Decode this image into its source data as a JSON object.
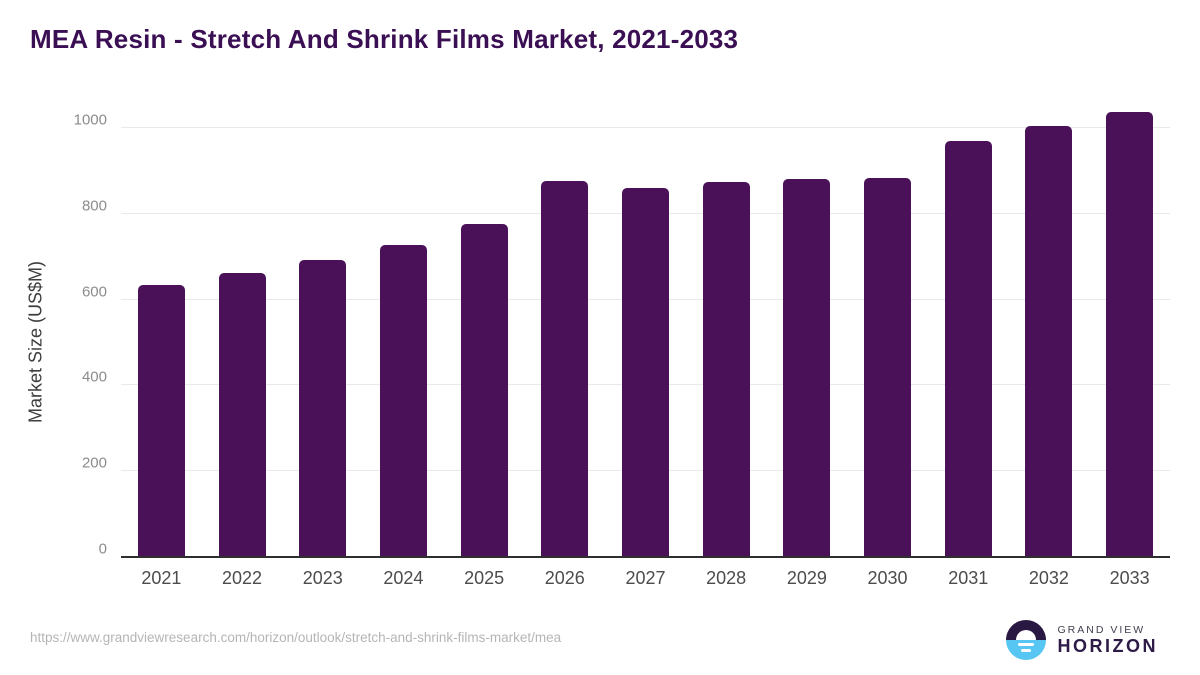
{
  "title": "MEA Resin - Stretch And Shrink Films Market, 2021-2033",
  "chart_data": {
    "type": "bar",
    "title": "MEA Resin - Stretch And Shrink Films Market, 2021-2033",
    "categories": [
      "2021",
      "2022",
      "2023",
      "2024",
      "2025",
      "2026",
      "2027",
      "2028",
      "2029",
      "2030",
      "2031",
      "2032",
      "2033"
    ],
    "values": [
      635,
      663,
      693,
      728,
      777,
      876,
      861,
      875,
      881,
      884,
      970,
      1005,
      1037
    ],
    "xlabel": "",
    "ylabel": "Market Size (US$M)",
    "ylim": [
      0,
      1000
    ],
    "yticks": [
      0,
      200,
      400,
      600,
      800,
      1000
    ],
    "grid": true,
    "legend": false,
    "bar_color": "#4a1158"
  },
  "colors": {
    "title": "#3a0f53",
    "bar": "#4a1158",
    "gridline": "#e9e9ec",
    "axis_line": "#2e2e2e",
    "ytick_label": "#8c8c8c",
    "xtick_label": "#4c4c4c",
    "url_text": "#b5b5b5",
    "logo_dark": "#291842",
    "logo_blue": "#57c6f2"
  },
  "footer": {
    "source_url": "https://www.grandviewresearch.com/horizon/outlook/stretch-and-shrink-films-market/mea",
    "logo": {
      "line1": "GRAND VIEW",
      "line2": "HORIZON"
    }
  }
}
